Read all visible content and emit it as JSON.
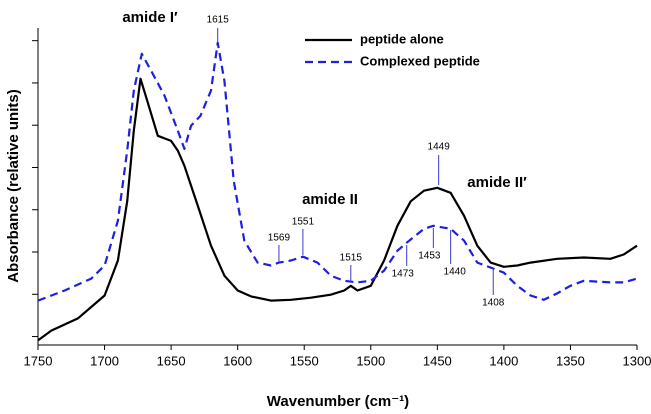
{
  "chart_data": {
    "type": "line",
    "xlabel": "Wavenumber (cm⁻¹)",
    "ylabel": "Absorbance (relative units)",
    "xlim": [
      1750,
      1300
    ],
    "xticks": [
      1750,
      1700,
      1650,
      1600,
      1550,
      1500,
      1450,
      1400,
      1350,
      1300
    ],
    "ylim": [
      -0.2,
      7.3
    ],
    "yticks": [
      0,
      1,
      2,
      3,
      4,
      5,
      6,
      7
    ],
    "annotations": [
      "amide I′",
      "amide II",
      "amide II′"
    ],
    "peak_labels": [
      1615,
      1569,
      1551,
      1515,
      1449,
      1473,
      1453,
      1440,
      1408
    ],
    "legend": "upper right",
    "series": [
      {
        "name": "peptide alone",
        "color": "#000000",
        "dash": false,
        "x": [
          1750,
          1740,
          1720,
          1700,
          1690,
          1683,
          1678,
          1673,
          1668,
          1660,
          1650,
          1645,
          1640,
          1630,
          1620,
          1610,
          1600,
          1590,
          1575,
          1560,
          1545,
          1530,
          1520,
          1515,
          1510,
          1500,
          1490,
          1480,
          1470,
          1460,
          1450,
          1440,
          1430,
          1420,
          1410,
          1400,
          1390,
          1380,
          1360,
          1340,
          1320,
          1310,
          1300
        ],
        "values": [
          -0.09,
          0.14,
          0.43,
          0.97,
          1.8,
          3.2,
          4.87,
          6.1,
          5.58,
          4.75,
          4.63,
          4.4,
          4.04,
          3.1,
          2.15,
          1.44,
          1.09,
          0.95,
          0.85,
          0.87,
          0.92,
          0.99,
          1.09,
          1.2,
          1.09,
          1.2,
          1.8,
          2.62,
          3.2,
          3.45,
          3.52,
          3.4,
          2.86,
          2.15,
          1.75,
          1.65,
          1.68,
          1.75,
          1.84,
          1.87,
          1.84,
          1.94,
          2.15
        ]
      },
      {
        "name": "Complexed peptide",
        "color": "#1f1fe0",
        "dash": true,
        "x": [
          1750,
          1730,
          1710,
          1700,
          1690,
          1683,
          1678,
          1672,
          1665,
          1655,
          1645,
          1640,
          1635,
          1628,
          1620,
          1615,
          1610,
          1603,
          1595,
          1585,
          1575,
          1569,
          1560,
          1551,
          1540,
          1530,
          1520,
          1510,
          1500,
          1490,
          1480,
          1473,
          1460,
          1453,
          1440,
          1430,
          1420,
          1408,
          1400,
          1390,
          1380,
          1370,
          1360,
          1350,
          1340,
          1330,
          1320,
          1310,
          1300
        ],
        "values": [
          0.85,
          1.09,
          1.37,
          1.68,
          2.74,
          4.4,
          5.82,
          6.69,
          6.29,
          5.7,
          4.87,
          4.44,
          4.99,
          5.22,
          5.82,
          6.95,
          6.05,
          3.69,
          2.27,
          1.75,
          1.68,
          1.75,
          1.8,
          1.89,
          1.75,
          1.44,
          1.32,
          1.28,
          1.32,
          1.56,
          2.03,
          2.22,
          2.55,
          2.62,
          2.55,
          2.27,
          1.75,
          1.61,
          1.51,
          1.2,
          0.97,
          0.87,
          1.02,
          1.2,
          1.32,
          1.3,
          1.28,
          1.28,
          1.37
        ]
      }
    ]
  }
}
